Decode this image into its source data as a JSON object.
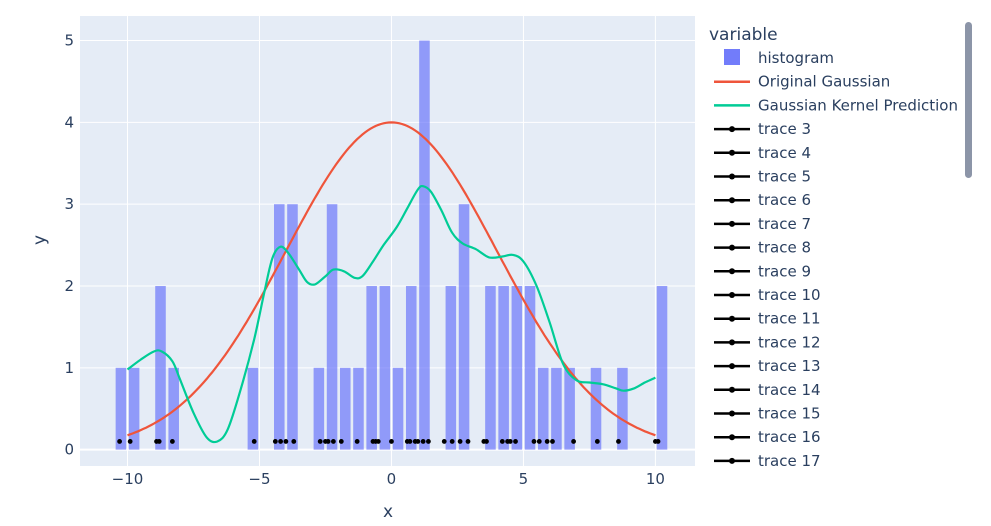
{
  "chart_data": {
    "type": "bar",
    "xlabel": "x",
    "ylabel": "y",
    "xlim": [
      -11.8,
      11.5
    ],
    "ylim": [
      -0.2,
      5.3
    ],
    "x_ticks": [
      -10,
      -5,
      0,
      5,
      10
    ],
    "x_tick_labels": [
      "−10",
      "−5",
      "0",
      "5",
      "10"
    ],
    "y_ticks": [
      0,
      1,
      2,
      3,
      4,
      5
    ],
    "y_tick_labels": [
      "0",
      "1",
      "2",
      "3",
      "4",
      "5"
    ],
    "grid": true,
    "legend_title": "variable",
    "legend_position": "right",
    "colors": {
      "plot_bg": "#e5ecf6",
      "histogram": "#636efa",
      "original": "#ef553b",
      "kde": "#00cc96",
      "markers": "#000000"
    },
    "histogram": {
      "name": "histogram",
      "bin_width": 0.5,
      "bins": [
        {
          "x": -10.25,
          "y": 1
        },
        {
          "x": -9.75,
          "y": 1
        },
        {
          "x": -8.75,
          "y": 2
        },
        {
          "x": -8.25,
          "y": 1
        },
        {
          "x": -5.25,
          "y": 1
        },
        {
          "x": -4.25,
          "y": 3
        },
        {
          "x": -3.75,
          "y": 3
        },
        {
          "x": -2.75,
          "y": 1
        },
        {
          "x": -2.25,
          "y": 3
        },
        {
          "x": -1.75,
          "y": 1
        },
        {
          "x": -1.25,
          "y": 1
        },
        {
          "x": -0.75,
          "y": 2
        },
        {
          "x": -0.25,
          "y": 2
        },
        {
          "x": 0.25,
          "y": 1
        },
        {
          "x": 0.75,
          "y": 2
        },
        {
          "x": 1.25,
          "y": 5
        },
        {
          "x": 2.25,
          "y": 2
        },
        {
          "x": 2.75,
          "y": 3
        },
        {
          "x": 3.75,
          "y": 2
        },
        {
          "x": 4.25,
          "y": 2
        },
        {
          "x": 4.75,
          "y": 2
        },
        {
          "x": 5.25,
          "y": 2
        },
        {
          "x": 5.75,
          "y": 1
        },
        {
          "x": 6.25,
          "y": 1
        },
        {
          "x": 6.75,
          "y": 1
        },
        {
          "x": 7.75,
          "y": 1
        },
        {
          "x": 8.75,
          "y": 1
        },
        {
          "x": 10.25,
          "y": 2
        }
      ]
    },
    "original_gaussian": {
      "name": "Original Gaussian",
      "mean": 0,
      "sd": 4,
      "peak": 4,
      "x_range": [
        -10,
        10
      ]
    },
    "kde": {
      "name": "Gaussian Kernel Prediction",
      "points": [
        [
          -10,
          0.98
        ],
        [
          -9.5,
          1.1
        ],
        [
          -9,
          1.2
        ],
        [
          -8.7,
          1.2
        ],
        [
          -8.3,
          1.08
        ],
        [
          -8,
          0.85
        ],
        [
          -7.5,
          0.45
        ],
        [
          -7,
          0.15
        ],
        [
          -6.6,
          0.1
        ],
        [
          -6.2,
          0.25
        ],
        [
          -5.7,
          0.75
        ],
        [
          -5.2,
          1.35
        ],
        [
          -4.8,
          1.95
        ],
        [
          -4.5,
          2.35
        ],
        [
          -4.2,
          2.48
        ],
        [
          -3.9,
          2.4
        ],
        [
          -3.5,
          2.2
        ],
        [
          -3.2,
          2.05
        ],
        [
          -2.9,
          2.02
        ],
        [
          -2.5,
          2.12
        ],
        [
          -2.2,
          2.2
        ],
        [
          -1.8,
          2.18
        ],
        [
          -1.4,
          2.1
        ],
        [
          -1.1,
          2.12
        ],
        [
          -0.7,
          2.3
        ],
        [
          -0.3,
          2.5
        ],
        [
          0.2,
          2.72
        ],
        [
          0.6,
          2.95
        ],
        [
          1,
          3.18
        ],
        [
          1.2,
          3.22
        ],
        [
          1.5,
          3.15
        ],
        [
          1.9,
          2.92
        ],
        [
          2.3,
          2.65
        ],
        [
          2.7,
          2.52
        ],
        [
          3.2,
          2.45
        ],
        [
          3.7,
          2.35
        ],
        [
          4.2,
          2.36
        ],
        [
          4.6,
          2.38
        ],
        [
          5,
          2.3
        ],
        [
          5.5,
          2.0
        ],
        [
          6,
          1.55
        ],
        [
          6.5,
          1.05
        ],
        [
          7,
          0.85
        ],
        [
          7.5,
          0.82
        ],
        [
          8,
          0.8
        ],
        [
          8.5,
          0.75
        ],
        [
          8.8,
          0.72
        ],
        [
          9.2,
          0.75
        ],
        [
          9.6,
          0.82
        ],
        [
          10,
          0.88
        ]
      ]
    },
    "marker_traces": {
      "y": 0.1,
      "x": [
        -10.3,
        -9.9,
        -8.9,
        -8.8,
        -8.3,
        -5.2,
        -4.4,
        -4.2,
        -4.0,
        -3.7,
        -2.7,
        -2.5,
        -2.4,
        -2.2,
        -1.9,
        -1.3,
        -0.7,
        -0.6,
        -0.5,
        0.0,
        0.6,
        0.7,
        0.9,
        1.0,
        1.2,
        1.4,
        2.0,
        2.3,
        2.6,
        2.9,
        3.5,
        3.6,
        4.2,
        4.4,
        4.5,
        4.7,
        5.4,
        5.6,
        5.9,
        6.1,
        6.9,
        7.8,
        8.6,
        10.0,
        10.1
      ]
    },
    "legend_entries": [
      {
        "label": "histogram",
        "kind": "bar"
      },
      {
        "label": "Original Gaussian",
        "kind": "line",
        "color": "#ef553b"
      },
      {
        "label": "Gaussian Kernel Prediction",
        "kind": "line",
        "color": "#00cc96"
      },
      {
        "label": "trace 3",
        "kind": "marker-line"
      },
      {
        "label": "trace 4",
        "kind": "marker-line"
      },
      {
        "label": "trace 5",
        "kind": "marker-line"
      },
      {
        "label": "trace 6",
        "kind": "marker-line"
      },
      {
        "label": "trace 7",
        "kind": "marker-line"
      },
      {
        "label": "trace 8",
        "kind": "marker-line"
      },
      {
        "label": "trace 9",
        "kind": "marker-line"
      },
      {
        "label": "trace 10",
        "kind": "marker-line"
      },
      {
        "label": "trace 11",
        "kind": "marker-line"
      },
      {
        "label": "trace 12",
        "kind": "marker-line"
      },
      {
        "label": "trace 13",
        "kind": "marker-line"
      },
      {
        "label": "trace 14",
        "kind": "marker-line"
      },
      {
        "label": "trace 15",
        "kind": "marker-line"
      },
      {
        "label": "trace 16",
        "kind": "marker-line"
      },
      {
        "label": "trace 17",
        "kind": "marker-line"
      }
    ]
  }
}
